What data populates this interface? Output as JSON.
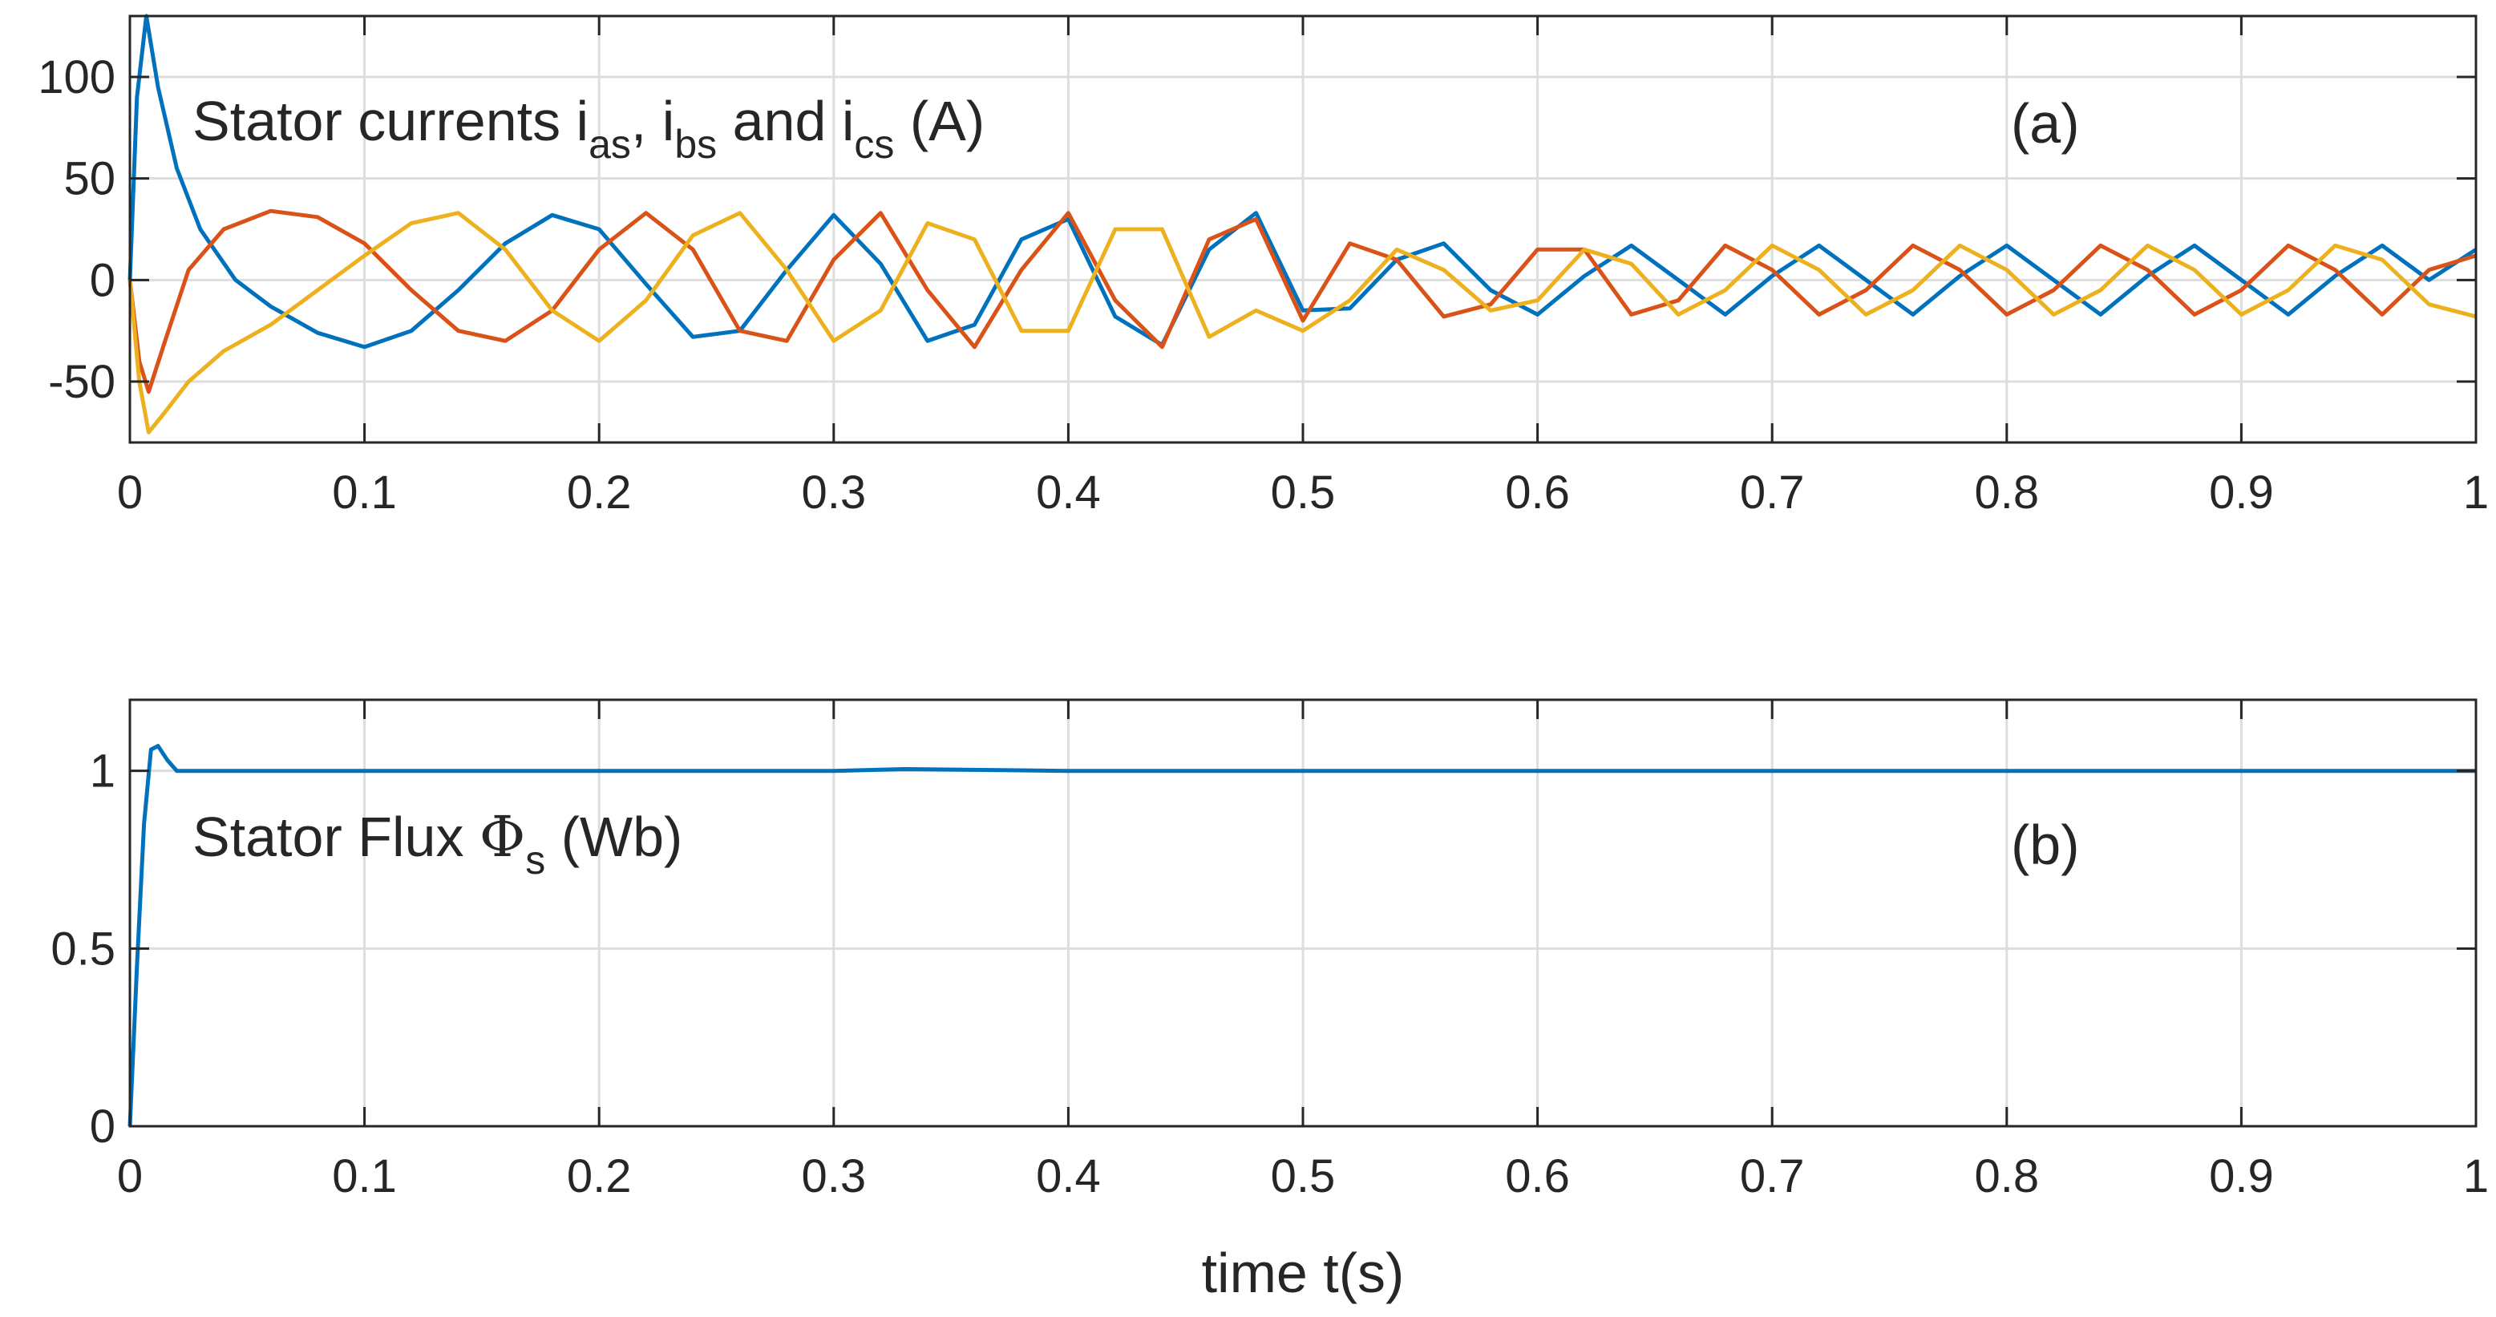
{
  "chart_data": [
    {
      "type": "line",
      "panel_tag": "(a)",
      "annotation": {
        "prefix": "Stator currents i",
        "sub1": "as",
        "mid1": ", i",
        "sub2": "bs",
        "mid2": " and i",
        "sub3": "cs",
        "suffix": " (A)"
      },
      "xlim": [
        0,
        1
      ],
      "ylim": [
        -80,
        130
      ],
      "xticks": [
        "0",
        "0.1",
        "0.2",
        "0.3",
        "0.4",
        "0.5",
        "0.6",
        "0.7",
        "0.8",
        "0.9",
        "1"
      ],
      "yticks": [
        {
          "v": -50,
          "label": "-50"
        },
        {
          "v": 0,
          "label": "0"
        },
        {
          "v": 50,
          "label": "50"
        },
        {
          "v": 100,
          "label": "100"
        }
      ],
      "grid": true,
      "series": [
        {
          "color": "#0072BD",
          "x": [
            0,
            0.003,
            0.007,
            0.012,
            0.02,
            0.03,
            0.045,
            0.06,
            0.08,
            0.1,
            0.12,
            0.14,
            0.16,
            0.18,
            0.2,
            0.22,
            0.24,
            0.26,
            0.28,
            0.3,
            0.32,
            0.34,
            0.36,
            0.38,
            0.4,
            0.42,
            0.44,
            0.46,
            0.48,
            0.5,
            0.52,
            0.54,
            0.56,
            0.58,
            0.6,
            0.62,
            0.64,
            0.66,
            0.68,
            0.7,
            0.72,
            0.74,
            0.76,
            0.78,
            0.8,
            0.82,
            0.84,
            0.86,
            0.88,
            0.9,
            0.92,
            0.94,
            0.96,
            0.98,
            1
          ],
          "y": [
            0,
            90,
            130,
            95,
            55,
            25,
            0,
            -13,
            -26,
            -33,
            -25,
            -5,
            18,
            32,
            25,
            -2,
            -28,
            -25,
            5,
            32,
            8,
            -30,
            -22,
            20,
            30,
            -18,
            -32,
            15,
            33,
            -15,
            -14,
            10,
            18,
            -5,
            -17,
            2,
            17,
            0,
            -17,
            2,
            17,
            0,
            -17,
            2,
            17,
            0,
            -17,
            2,
            17,
            0,
            -17,
            2,
            17,
            0,
            15
          ]
        },
        {
          "color": "#D95319",
          "x": [
            0,
            0.004,
            0.008,
            0.015,
            0.025,
            0.04,
            0.06,
            0.08,
            0.1,
            0.12,
            0.14,
            0.16,
            0.18,
            0.2,
            0.22,
            0.24,
            0.26,
            0.28,
            0.3,
            0.32,
            0.34,
            0.36,
            0.38,
            0.4,
            0.42,
            0.44,
            0.46,
            0.48,
            0.5,
            0.52,
            0.54,
            0.56,
            0.58,
            0.6,
            0.62,
            0.64,
            0.66,
            0.68,
            0.7,
            0.72,
            0.74,
            0.76,
            0.78,
            0.8,
            0.82,
            0.84,
            0.86,
            0.88,
            0.9,
            0.92,
            0.94,
            0.96,
            0.98,
            1
          ],
          "y": [
            0,
            -40,
            -55,
            -30,
            5,
            25,
            34,
            31,
            18,
            -5,
            -25,
            -30,
            -15,
            15,
            33,
            15,
            -25,
            -30,
            10,
            33,
            -5,
            -33,
            5,
            33,
            -10,
            -33,
            20,
            30,
            -20,
            18,
            10,
            -18,
            -12,
            15,
            15,
            -17,
            -10,
            17,
            5,
            -17,
            -5,
            17,
            5,
            -17,
            -5,
            17,
            5,
            -17,
            -5,
            17,
            5,
            -17,
            5,
            12
          ]
        },
        {
          "color": "#EDB120",
          "x": [
            0,
            0.004,
            0.008,
            0.015,
            0.025,
            0.04,
            0.06,
            0.08,
            0.1,
            0.12,
            0.14,
            0.16,
            0.18,
            0.2,
            0.22,
            0.24,
            0.26,
            0.28,
            0.3,
            0.32,
            0.34,
            0.36,
            0.38,
            0.4,
            0.42,
            0.44,
            0.46,
            0.48,
            0.5,
            0.52,
            0.54,
            0.56,
            0.58,
            0.6,
            0.62,
            0.64,
            0.66,
            0.68,
            0.7,
            0.72,
            0.74,
            0.76,
            0.78,
            0.8,
            0.82,
            0.84,
            0.86,
            0.88,
            0.9,
            0.92,
            0.94,
            0.96,
            0.98,
            1
          ],
          "y": [
            0,
            -50,
            -75,
            -65,
            -50,
            -35,
            -22,
            -5,
            12,
            28,
            33,
            15,
            -15,
            -30,
            -10,
            22,
            33,
            5,
            -30,
            -15,
            28,
            20,
            -25,
            -25,
            25,
            25,
            -28,
            -15,
            -25,
            -10,
            15,
            5,
            -15,
            -10,
            15,
            8,
            -17,
            -5,
            17,
            5,
            -17,
            -5,
            17,
            5,
            -17,
            -5,
            17,
            5,
            -17,
            -5,
            17,
            10,
            -12,
            -18
          ]
        }
      ]
    },
    {
      "type": "line",
      "panel_tag": "(b)",
      "annotation": {
        "prefix": "Stator Flux ",
        "symbol": "Φ",
        "sub": "s",
        "suffix": " (Wb)"
      },
      "xlim": [
        0,
        1
      ],
      "ylim": [
        0,
        1.2
      ],
      "xticks": [
        "0",
        "0.1",
        "0.2",
        "0.3",
        "0.4",
        "0.5",
        "0.6",
        "0.7",
        "0.8",
        "0.9",
        "1"
      ],
      "yticks": [
        {
          "v": 0,
          "label": "0"
        },
        {
          "v": 0.5,
          "label": "0.5"
        },
        {
          "v": 1,
          "label": "1"
        }
      ],
      "xlabel": "time t(s)",
      "grid": true,
      "series": [
        {
          "color": "#0072BD",
          "x": [
            0,
            0.003,
            0.006,
            0.009,
            0.012,
            0.016,
            0.02,
            0.03,
            0.1,
            0.2,
            0.3,
            0.33,
            0.4,
            0.5,
            0.6,
            0.7,
            0.8,
            0.9,
            1
          ],
          "y": [
            0,
            0.45,
            0.85,
            1.06,
            1.07,
            1.03,
            1.0,
            1.0,
            1.0,
            1.0,
            1.0,
            1.005,
            1.0,
            1.0,
            1.0,
            1.0,
            1.0,
            1.0,
            1.0
          ]
        }
      ]
    }
  ]
}
